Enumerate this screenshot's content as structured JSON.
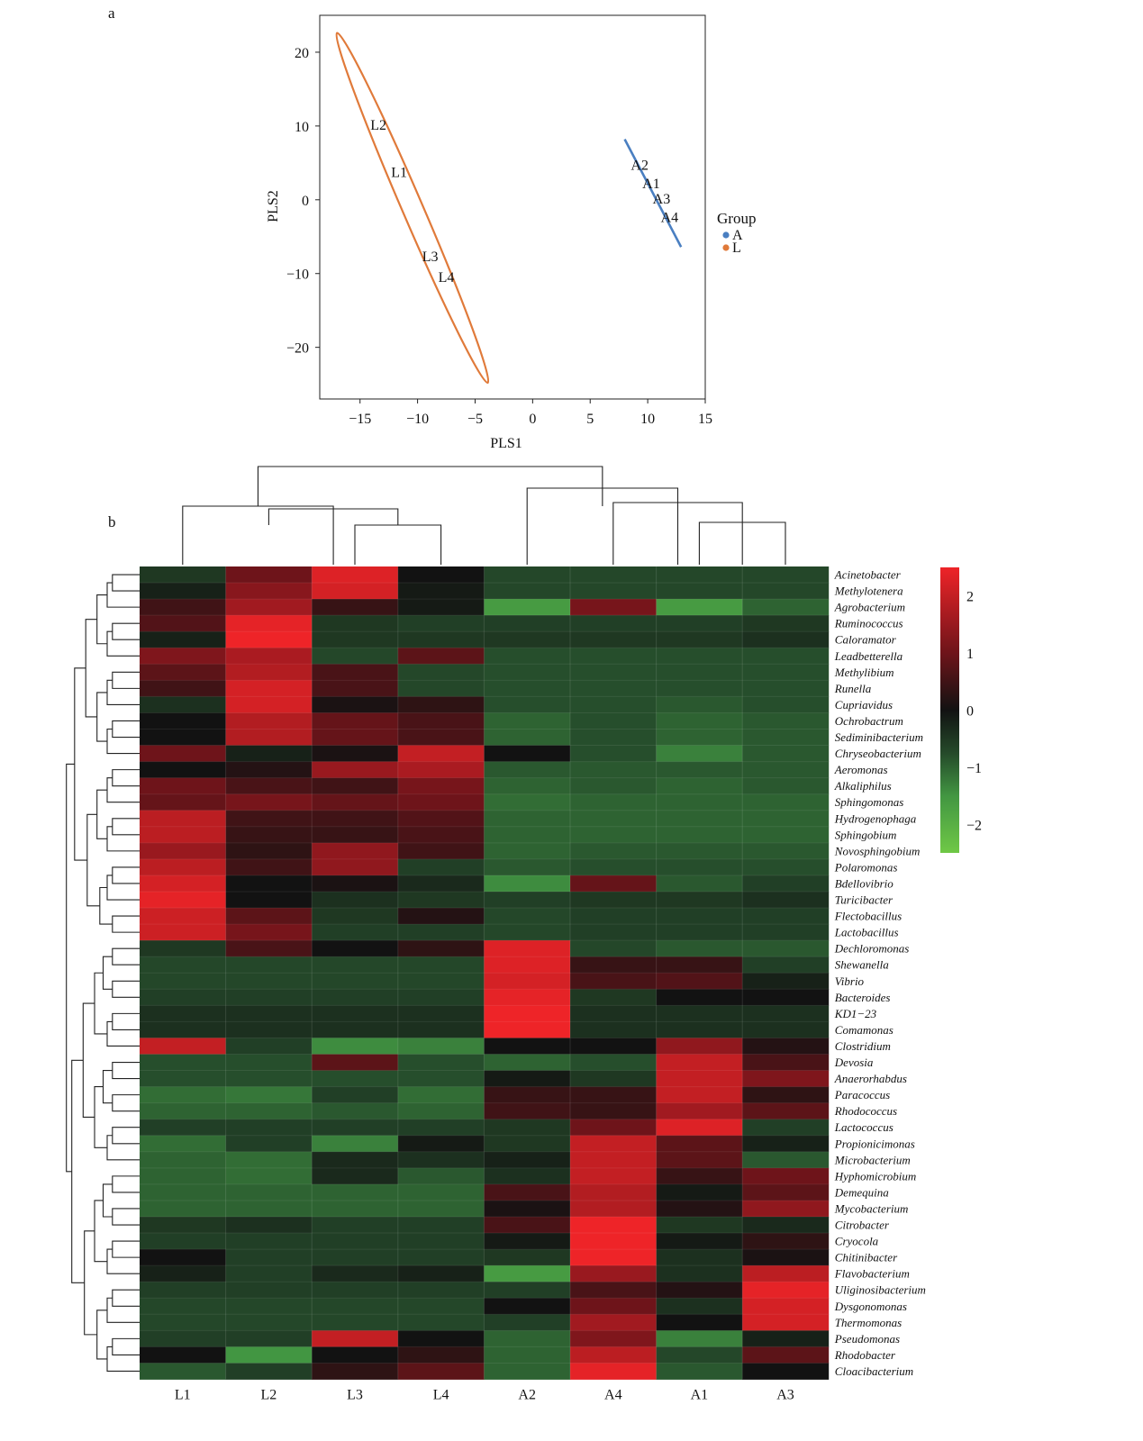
{
  "panel_labels": [
    "a",
    "b"
  ],
  "chart_data": [
    {
      "type": "scatter",
      "xlabel": "PLS1",
      "ylabel": "PLS2",
      "xlim": [
        -18.5,
        15
      ],
      "ylim": [
        -27,
        25
      ],
      "xticks": [
        -15,
        -10,
        -5,
        0,
        5,
        10,
        15
      ],
      "yticks": [
        -20,
        -10,
        0,
        10,
        20
      ],
      "xtick_labels": [
        "−15",
        "−10",
        "−5",
        "0",
        "5",
        "10",
        "15"
      ],
      "ytick_labels": [
        "−20",
        "−10",
        "0",
        "10",
        "20"
      ],
      "legend_title": "Group",
      "legend_position": "right",
      "series": [
        {
          "name": "A",
          "color": "#4a7fc1",
          "points": [
            {
              "label": "A2",
              "x": 9.3,
              "y": 4.8
            },
            {
              "label": "A1",
              "x": 10.3,
              "y": 2.3
            },
            {
              "label": "A3",
              "x": 11.2,
              "y": 0.2
            },
            {
              "label": "A4",
              "x": 11.9,
              "y": -2.3
            }
          ],
          "ellipse_line": [
            [
              8.0,
              8.2
            ],
            [
              12.9,
              -6.4
            ]
          ]
        },
        {
          "name": "L",
          "color": "#e07a3a",
          "points": [
            {
              "label": "L2",
              "x": -13.4,
              "y": 10.2
            },
            {
              "label": "L1",
              "x": -11.6,
              "y": 3.8
            },
            {
              "label": "L3",
              "x": -8.9,
              "y": -7.6
            },
            {
              "label": "L4",
              "x": -7.5,
              "y": -10.4
            }
          ],
          "ellipse": {
            "center": [
              -10.5,
              -1.0
            ],
            "tip1": [
              -17.0,
              22.6
            ],
            "tip2": [
              -3.9,
              -24.8
            ],
            "half_width": 0.9
          }
        }
      ]
    },
    {
      "type": "heatmap",
      "columns": [
        "L1",
        "L2",
        "L3",
        "L4",
        "A2",
        "A4",
        "A1",
        "A3"
      ],
      "rows": [
        "Acinetobacter",
        "Methylotenera",
        "Agrobacterium",
        "Ruminococcus",
        "Caloramator",
        "Leadbetterella",
        "Methylibium",
        "Runella",
        "Cupriavidus",
        "Ochrobactrum",
        "Sediminibacterium",
        "Chryseobacterium",
        "Aeromonas",
        "Alkaliphilus",
        "Sphingomonas",
        "Hydrogenophaga",
        "Sphingobium",
        "Novosphingobium",
        "Polaromonas",
        "Bdellovibrio",
        "Turicibacter",
        "Flectobacillus",
        "Lactobacillus",
        "Dechloromonas",
        "Shewanella",
        "Vibrio",
        "Bacteroides",
        "KD1−23",
        "Comamonas",
        "Clostridium",
        "Devosia",
        "Anaerorhabdus",
        "Paracoccus",
        "Rhodococcus",
        "Lactococcus",
        "Propionicimonas",
        "Microbacterium",
        "Hyphomicrobium",
        "Demequina",
        "Mycobacterium",
        "Citrobacter",
        "Cryocola",
        "Chitinibacter",
        "Flavobacterium",
        "Uliginosibacterium",
        "Dysgonomonas",
        "Thermomonas",
        "Pseudomonas",
        "Rhodobacter",
        "Cloacibacterium"
      ],
      "values": [
        [
          -0.5,
          1.0,
          2.3,
          0.0,
          -0.7,
          -0.7,
          -0.7,
          -0.7
        ],
        [
          -0.2,
          1.3,
          2.2,
          -0.1,
          -0.7,
          -0.7,
          -0.7,
          -0.7
        ],
        [
          0.5,
          1.6,
          0.4,
          -0.1,
          -1.6,
          1.1,
          -1.6,
          -1.0
        ],
        [
          0.7,
          2.4,
          -0.5,
          -0.6,
          -0.6,
          -0.6,
          -0.6,
          -0.5
        ],
        [
          -0.2,
          2.5,
          -0.5,
          -0.5,
          -0.5,
          -0.5,
          -0.5,
          -0.4
        ],
        [
          1.2,
          1.7,
          -0.7,
          0.8,
          -0.8,
          -0.8,
          -0.8,
          -0.8
        ],
        [
          0.8,
          1.8,
          0.6,
          -0.7,
          -0.8,
          -0.8,
          -0.8,
          -0.8
        ],
        [
          0.5,
          2.2,
          0.6,
          -0.7,
          -0.8,
          -0.8,
          -0.8,
          -0.8
        ],
        [
          -0.4,
          2.2,
          0.1,
          0.3,
          -0.8,
          -0.8,
          -0.9,
          -0.8
        ],
        [
          0.0,
          1.8,
          0.9,
          0.6,
          -1.0,
          -0.8,
          -1.0,
          -0.9
        ],
        [
          0.0,
          1.8,
          0.9,
          0.6,
          -1.0,
          -0.8,
          -1.0,
          -0.9
        ],
        [
          1.0,
          -0.2,
          0.1,
          2.0,
          0.0,
          -0.8,
          -1.3,
          -0.9
        ],
        [
          0.0,
          0.2,
          1.5,
          1.7,
          -0.9,
          -0.9,
          -0.9,
          -0.9
        ],
        [
          1.0,
          0.6,
          0.5,
          1.1,
          -1.0,
          -0.9,
          -1.0,
          -0.9
        ],
        [
          0.9,
          1.1,
          0.9,
          1.0,
          -1.1,
          -1.0,
          -1.0,
          -1.0
        ],
        [
          1.9,
          0.5,
          0.5,
          0.7,
          -1.0,
          -1.0,
          -1.0,
          -1.0
        ],
        [
          1.9,
          0.4,
          0.4,
          0.6,
          -1.0,
          -1.0,
          -1.0,
          -1.0
        ],
        [
          1.5,
          0.3,
          1.4,
          0.5,
          -1.0,
          -0.9,
          -0.9,
          -0.9
        ],
        [
          1.9,
          0.5,
          1.4,
          -0.6,
          -0.9,
          -0.8,
          -0.8,
          -0.8
        ],
        [
          2.2,
          0.0,
          0.1,
          -0.3,
          -1.4,
          0.9,
          -0.9,
          -0.6
        ],
        [
          2.4,
          0.0,
          -0.4,
          -0.5,
          -0.6,
          -0.5,
          -0.5,
          -0.4
        ],
        [
          2.1,
          0.8,
          -0.5,
          0.2,
          -0.7,
          -0.6,
          -0.6,
          -0.6
        ],
        [
          2.1,
          1.1,
          -0.6,
          -0.6,
          -0.7,
          -0.6,
          -0.6,
          -0.6
        ],
        [
          -0.5,
          0.6,
          0.0,
          0.3,
          2.3,
          -0.7,
          -0.9,
          -0.9
        ],
        [
          -0.7,
          -0.7,
          -0.7,
          -0.7,
          2.3,
          0.4,
          0.4,
          -0.6
        ],
        [
          -0.7,
          -0.7,
          -0.7,
          -0.7,
          2.2,
          0.6,
          0.7,
          -0.2
        ],
        [
          -0.6,
          -0.6,
          -0.6,
          -0.6,
          2.4,
          -0.5,
          0.0,
          0.0
        ],
        [
          -0.4,
          -0.4,
          -0.4,
          -0.4,
          2.5,
          -0.4,
          -0.4,
          -0.4
        ],
        [
          -0.4,
          -0.4,
          -0.4,
          -0.4,
          2.5,
          -0.4,
          -0.4,
          -0.4
        ],
        [
          2.0,
          -0.6,
          -1.4,
          -1.3,
          0.0,
          0.0,
          1.4,
          0.2
        ],
        [
          -0.8,
          -0.8,
          0.8,
          -0.8,
          -1.0,
          -0.8,
          2.0,
          0.6
        ],
        [
          -0.8,
          -0.8,
          -0.8,
          -0.8,
          -0.1,
          -0.5,
          2.0,
          1.2
        ],
        [
          -1.1,
          -1.2,
          -0.6,
          -1.1,
          0.4,
          0.4,
          2.0,
          0.3
        ],
        [
          -1.0,
          -1.0,
          -0.9,
          -1.0,
          0.5,
          0.4,
          1.6,
          0.8
        ],
        [
          -0.6,
          -0.6,
          -0.6,
          -0.6,
          -0.5,
          1.0,
          2.3,
          -0.6
        ],
        [
          -1.1,
          -0.6,
          -1.3,
          -0.1,
          -0.5,
          2.0,
          0.8,
          -0.2
        ],
        [
          -1.0,
          -1.1,
          -0.3,
          -0.4,
          -0.2,
          2.0,
          0.8,
          -0.9
        ],
        [
          -1.0,
          -1.1,
          -0.3,
          -0.9,
          -0.4,
          2.0,
          0.4,
          1.0
        ],
        [
          -1.0,
          -1.0,
          -1.0,
          -1.0,
          0.6,
          1.8,
          -0.1,
          0.8
        ],
        [
          -1.0,
          -1.0,
          -1.0,
          -1.0,
          0.1,
          1.8,
          0.2,
          1.4
        ],
        [
          -0.5,
          -0.4,
          -0.6,
          -0.6,
          0.6,
          2.5,
          -0.5,
          -0.3
        ],
        [
          -0.6,
          -0.6,
          -0.6,
          -0.6,
          -0.1,
          2.5,
          -0.1,
          0.3
        ],
        [
          0.0,
          -0.6,
          -0.6,
          -0.6,
          -0.5,
          2.5,
          -0.4,
          0.1
        ],
        [
          -0.2,
          -0.6,
          -0.3,
          -0.2,
          -1.6,
          1.5,
          -0.4,
          1.9
        ],
        [
          -0.6,
          -0.6,
          -0.6,
          -0.6,
          -0.6,
          0.6,
          0.2,
          2.4
        ],
        [
          -0.7,
          -0.7,
          -0.7,
          -0.7,
          0.0,
          1.0,
          -0.4,
          2.2
        ],
        [
          -0.7,
          -0.7,
          -0.7,
          -0.7,
          -0.6,
          1.6,
          0.0,
          2.2
        ],
        [
          -0.6,
          -0.6,
          2.0,
          0.0,
          -1.0,
          1.2,
          -1.3,
          -0.2
        ],
        [
          0.0,
          -1.5,
          0.0,
          0.3,
          -1.0,
          1.9,
          -0.7,
          0.8
        ],
        [
          -0.9,
          -0.6,
          0.3,
          0.8,
          -1.0,
          2.4,
          -0.9,
          0.0
        ]
      ],
      "colorbar": {
        "ticks": [
          2,
          1,
          0,
          -1,
          -2
        ],
        "tick_labels": [
          "2",
          "1",
          "0",
          "−1",
          "−2"
        ],
        "range": [
          -2.5,
          2.5
        ]
      },
      "column_order_note": "",
      "col_tree": [
        [
          [
            0
          ],
          [
            [
              1
            ],
            [
              [
                2
              ],
              [
                3
              ]
            ]
          ]
        ],
        [
          [
            4
          ],
          [
            [
              5
            ],
            [
              [
                6
              ],
              [
                7
              ]
            ]
          ]
        ]
      ]
    }
  ]
}
